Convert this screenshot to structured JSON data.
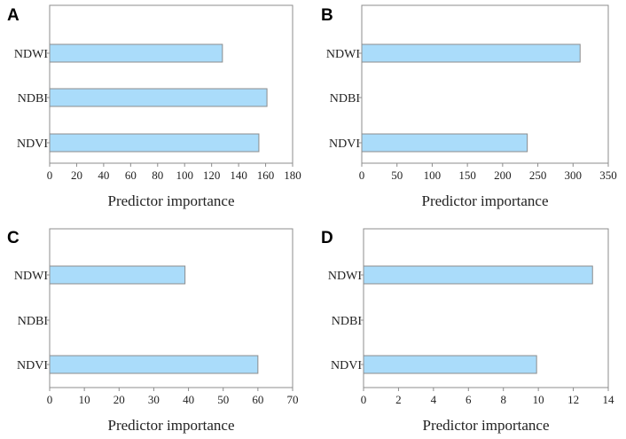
{
  "colors": {
    "bar_fill": "#aadcfa",
    "bar_stroke": "#8c8c8c",
    "frame": "#8c8c8c",
    "text": "#222222"
  },
  "chart_data": [
    {
      "panel": "A",
      "type": "bar",
      "orientation": "horizontal",
      "categories": [
        "NDWI",
        "NDBI",
        "NDVI"
      ],
      "values": [
        128,
        161,
        155
      ],
      "xlabel": "Predictor importance",
      "xlim": [
        0,
        180
      ],
      "xticks": [
        0,
        20,
        40,
        60,
        80,
        100,
        120,
        140,
        160,
        180
      ]
    },
    {
      "panel": "B",
      "type": "bar",
      "orientation": "horizontal",
      "categories": [
        "NDWI",
        "NDBI",
        "NDVI"
      ],
      "values": [
        310,
        0,
        235
      ],
      "xlabel": "Predictor importance",
      "xlim": [
        0,
        350
      ],
      "xticks": [
        0,
        50,
        100,
        150,
        200,
        250,
        300,
        350
      ]
    },
    {
      "panel": "C",
      "type": "bar",
      "orientation": "horizontal",
      "categories": [
        "NDWI",
        "NDBI",
        "NDVI"
      ],
      "values": [
        39,
        0,
        60
      ],
      "xlabel": "Predictor importance",
      "xlim": [
        0,
        70
      ],
      "xticks": [
        0,
        10,
        20,
        30,
        40,
        50,
        60,
        70
      ]
    },
    {
      "panel": "D",
      "type": "bar",
      "orientation": "horizontal",
      "categories": [
        "NDWI",
        "NDBI",
        "NDVI"
      ],
      "values": [
        13.1,
        0,
        9.9
      ],
      "xlabel": "Predictor importance",
      "xlim": [
        0,
        14
      ],
      "xticks": [
        0,
        2,
        4,
        6,
        8,
        10,
        12,
        14
      ]
    }
  ]
}
